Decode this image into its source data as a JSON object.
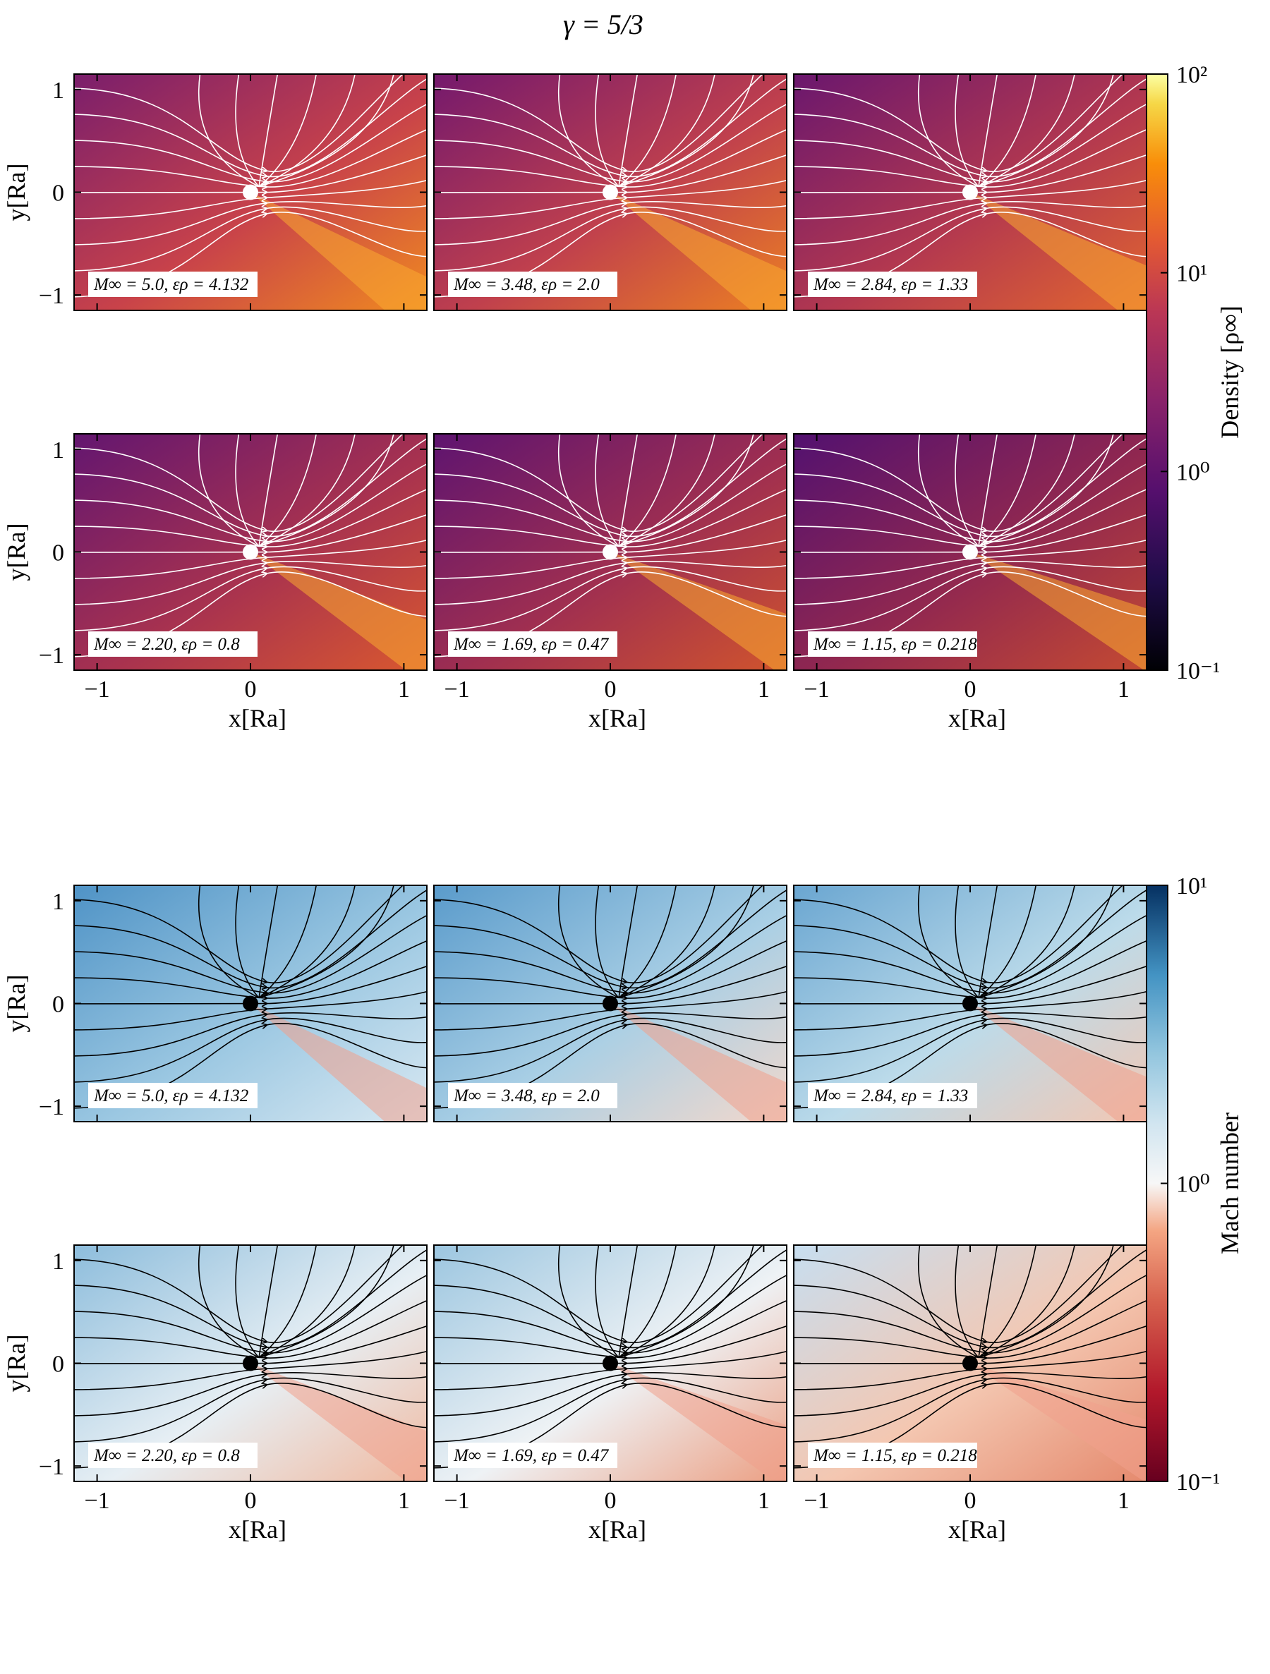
{
  "figure": {
    "title": "γ = 5/3"
  },
  "chart_data": [
    {
      "type": "heatmap",
      "quantity": "density",
      "colormap": "inferno",
      "colorbar": {
        "label": "Density [ρ∞]",
        "scale": "log",
        "range": [
          0.1,
          100
        ],
        "ticks": [
          "10²",
          "10¹",
          "10⁰",
          "10⁻¹"
        ]
      },
      "streamline_color": "#ffffff",
      "star_marker_color": "#ffffff",
      "xlabel": "x[Ra]",
      "ylabel": "y[Ra]",
      "xlim": [
        -1.15,
        1.15
      ],
      "ylim": [
        -1.15,
        1.15
      ],
      "x_ticks": [
        "−1",
        "0",
        "1"
      ],
      "y_ticks": [
        "1",
        "0",
        "−1"
      ],
      "panels": [
        {
          "mach": "5.0",
          "eps": "4.132",
          "label": "M∞ = 5.0, ερ = 4.132"
        },
        {
          "mach": "3.48",
          "eps": "2.0",
          "label": "M∞ = 3.48, ερ = 2.0"
        },
        {
          "mach": "2.84",
          "eps": "1.33",
          "label": "M∞ = 2.84, ερ = 1.33"
        },
        {
          "mach": "2.20",
          "eps": "0.8",
          "label": "M∞ = 2.20, ερ = 0.8"
        },
        {
          "mach": "1.69",
          "eps": "0.47",
          "label": "M∞ = 1.69, ερ = 0.47"
        },
        {
          "mach": "1.15",
          "eps": "0.218",
          "label": "M∞ = 1.15, ερ = 0.218"
        }
      ]
    },
    {
      "type": "heatmap",
      "quantity": "mach number",
      "colormap": "RdBu",
      "colorbar": {
        "label": "Mach number",
        "scale": "log",
        "range": [
          0.1,
          10
        ],
        "ticks": [
          "10¹",
          "10⁰",
          "10⁻¹"
        ]
      },
      "streamline_color": "#000000",
      "star_marker_color": "#000000",
      "xlabel": "x[Ra]",
      "ylabel": "y[Ra]",
      "xlim": [
        -1.15,
        1.15
      ],
      "ylim": [
        -1.15,
        1.15
      ],
      "x_ticks": [
        "−1",
        "0",
        "1"
      ],
      "y_ticks": [
        "1",
        "0",
        "−1"
      ],
      "panels": [
        {
          "mach": "5.0",
          "eps": "4.132",
          "label": "M∞ = 5.0, ερ = 4.132"
        },
        {
          "mach": "3.48",
          "eps": "2.0",
          "label": "M∞ = 3.48, ερ = 2.0"
        },
        {
          "mach": "2.84",
          "eps": "1.33",
          "label": "M∞ = 2.84, ερ = 1.33"
        },
        {
          "mach": "2.20",
          "eps": "0.8",
          "label": "M∞ = 2.20, ερ = 0.8"
        },
        {
          "mach": "1.69",
          "eps": "0.47",
          "label": "M∞ = 1.69, ερ = 0.47"
        },
        {
          "mach": "1.15",
          "eps": "0.218",
          "label": "M∞ = 1.15, ερ = 0.218"
        }
      ]
    }
  ]
}
